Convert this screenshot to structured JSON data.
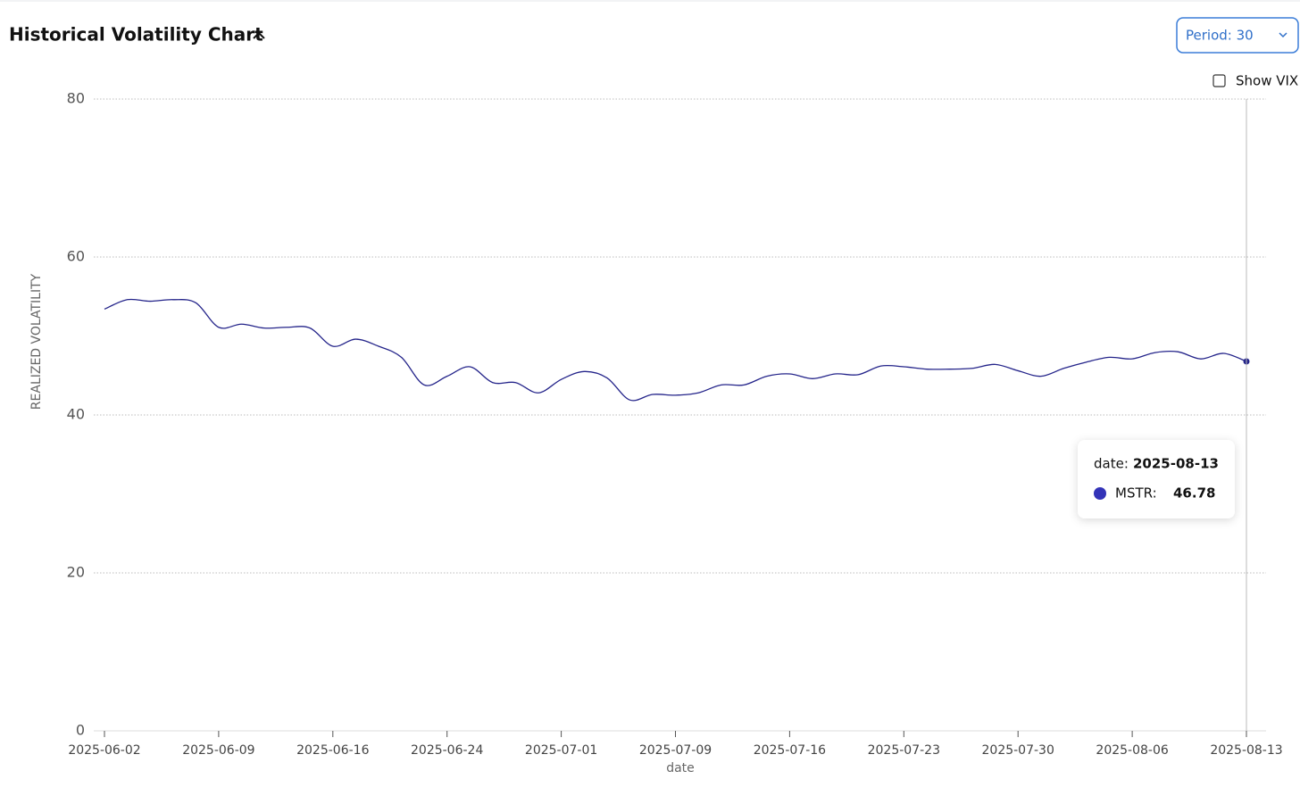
{
  "header": {
    "title": "Historical Volatility Chart",
    "period": "Period: 30",
    "checkbox": "Show VIX"
  },
  "tooltip": {
    "date_label": "date:",
    "series_label": "MSTR:"
  },
  "chart_data": {
    "type": "line",
    "y_label": "REALIZED VOLATILITY",
    "x_label": "date",
    "categories": [
      "2025-06-02",
      null,
      null,
      null,
      null,
      "2025-06-09",
      null,
      null,
      null,
      null,
      "2025-06-16",
      null,
      null,
      null,
      null,
      "2025-06-24",
      null,
      null,
      null,
      null,
      "2025-07-01",
      null,
      null,
      null,
      null,
      "2025-07-09",
      null,
      null,
      null,
      null,
      "2025-07-16",
      null,
      null,
      null,
      null,
      "2025-07-23",
      null,
      null,
      null,
      null,
      "2025-07-30",
      null,
      null,
      null,
      null,
      "2025-08-06",
      null,
      null,
      null,
      null,
      "2025-08-13"
    ],
    "series": [
      {
        "name": "MSTR",
        "color": "#24248a",
        "values": [
          53.4,
          54.6,
          54.4,
          54.6,
          54.2,
          51.1,
          51.5,
          51.0,
          51.1,
          51.0,
          48.7,
          49.6,
          48.7,
          47.3,
          43.8,
          44.9,
          46.1,
          44.1,
          44.1,
          42.8,
          44.5,
          45.5,
          44.7,
          41.9,
          42.6,
          42.5,
          42.8,
          43.8,
          43.8,
          44.9,
          45.2,
          44.6,
          45.2,
          45.1,
          46.2,
          46.1,
          45.8,
          45.8,
          45.9,
          46.4,
          45.6,
          44.9,
          45.9,
          46.7,
          47.3,
          47.1,
          47.9,
          48.0,
          47.1,
          47.8,
          46.78
        ]
      }
    ],
    "ylim": [
      0,
      80
    ],
    "yticks": [
      0,
      20,
      40,
      60,
      80
    ],
    "grid": true
  }
}
